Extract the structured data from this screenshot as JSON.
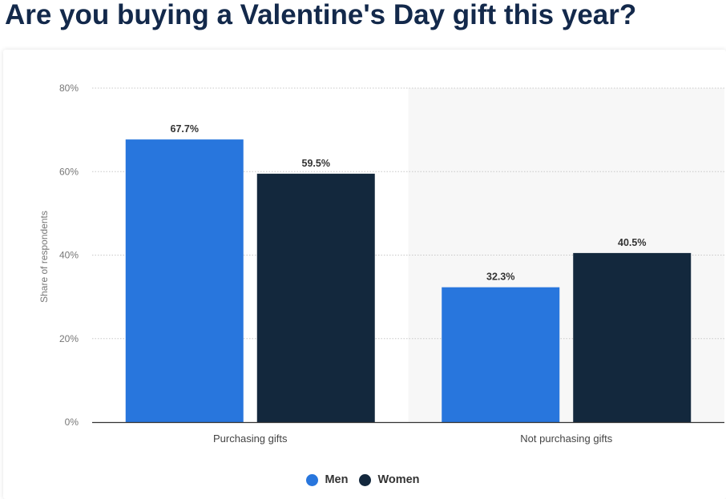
{
  "page": {
    "title": "Are you buying a Valentine's Day gift this year?"
  },
  "chart_data": {
    "type": "bar",
    "categories": [
      "Purchasing gifts",
      "Not purchasing gifts"
    ],
    "series": [
      {
        "name": "Men",
        "values": [
          67.7,
          32.3
        ],
        "labels": [
          "67.7%",
          "32.3%"
        ],
        "color": "#2876dd"
      },
      {
        "name": "Women",
        "values": [
          59.5,
          40.5
        ],
        "labels": [
          "59.5%",
          "40.5%"
        ],
        "color": "#13283d"
      }
    ],
    "ylabel": "Share of respondents",
    "xlabel": "",
    "ylim": [
      0,
      80
    ],
    "yticks": [
      0,
      20,
      40,
      60,
      80
    ],
    "ytick_labels": [
      "0%",
      "20%",
      "40%",
      "60%",
      "80%"
    ],
    "grid": true,
    "legend_position": "bottom-center",
    "highlight_background": "#f7f7f7"
  }
}
